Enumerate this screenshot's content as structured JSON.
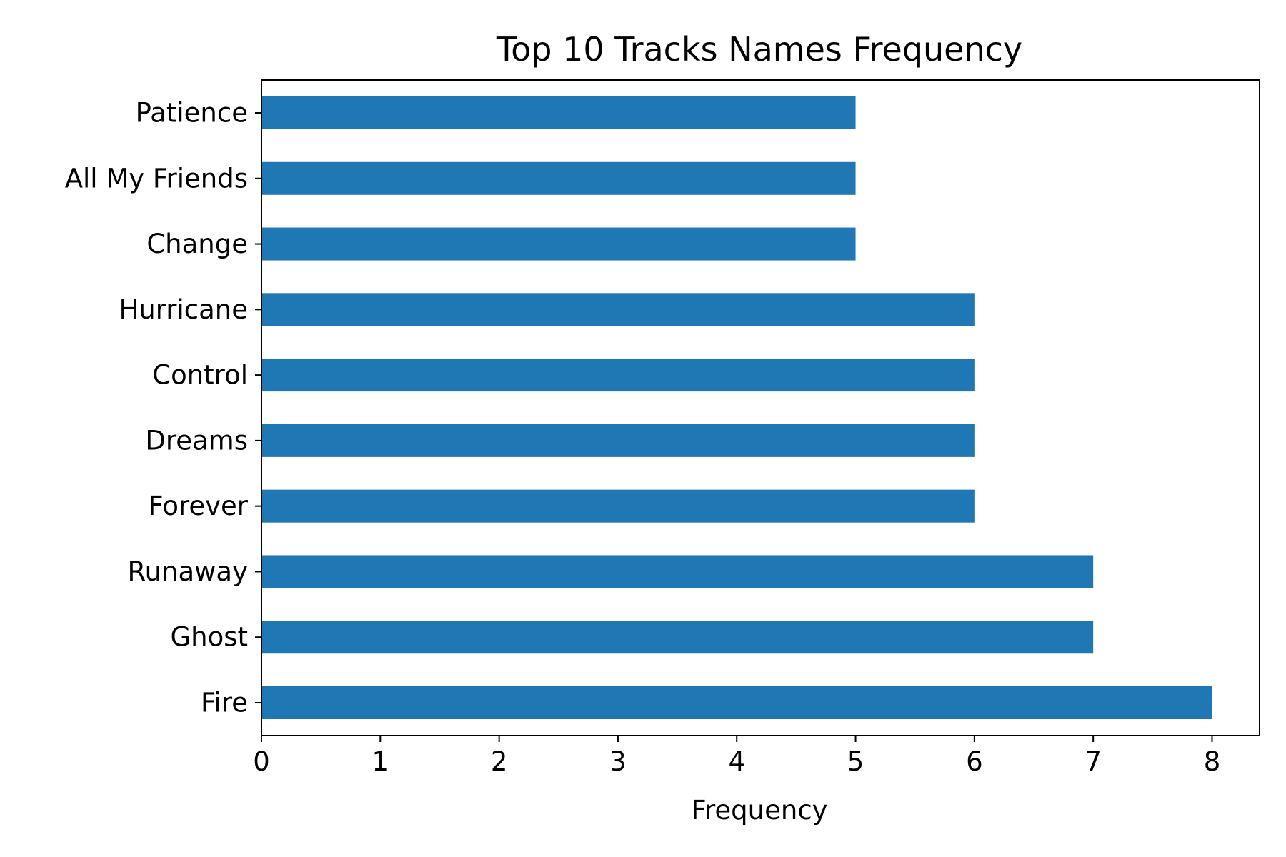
{
  "chart_data": {
    "type": "bar",
    "orientation": "horizontal",
    "title": "Top 10 Tracks Names Frequency",
    "xlabel": "Frequency",
    "ylabel": "",
    "categories": [
      "Fire",
      "Ghost",
      "Runaway",
      "Forever",
      "Dreams",
      "Control",
      "Hurricane",
      "Change",
      "All My Friends",
      "Patience"
    ],
    "values": [
      8,
      7,
      7,
      6,
      6,
      6,
      6,
      5,
      5,
      5
    ],
    "xlim": [
      0,
      8.4
    ],
    "xticks": [
      0,
      1,
      2,
      3,
      4,
      5,
      6,
      7,
      8
    ],
    "grid": false,
    "bar_color": "#1f77b4"
  }
}
